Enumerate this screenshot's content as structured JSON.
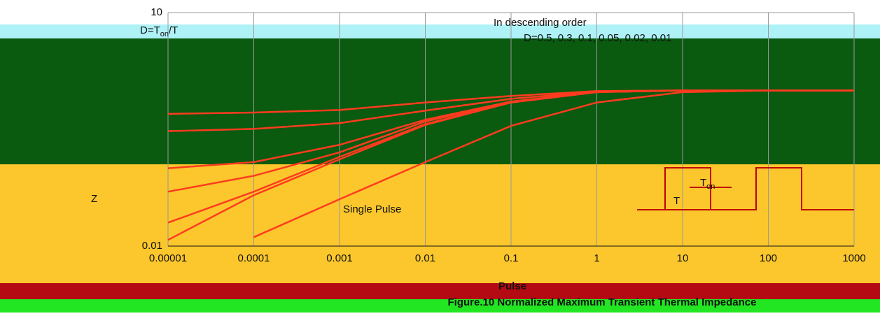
{
  "chart_data": {
    "type": "line",
    "title": "Figure.10 Normalized Maximum Transient Thermal Impedance",
    "x_label": "Pulse",
    "y_label": "Z",
    "legend_title": "In descending order",
    "legend_text": "D=0.5, 0.3, 0.1, 0.05, 0.02, 0.01",
    "duty_formula": {
      "lead": "D=T",
      "sub": "on",
      "tail": "/T"
    },
    "annotation": "Single Pulse",
    "inset_period": "T",
    "inset_on": {
      "lead": "T",
      "sub": "on"
    },
    "x": [
      1e-05,
      0.0001,
      0.001,
      0.01,
      0.1,
      1,
      10,
      100,
      1000
    ],
    "series": [
      {
        "color": "#ff3b1f",
        "values": [
          0.5,
          0.52,
          0.56,
          0.7,
          0.85,
          0.98,
          1,
          1,
          1
        ]
      },
      {
        "color": "#ff3b1f",
        "values": [
          0.3,
          0.32,
          0.38,
          0.55,
          0.78,
          0.97,
          1,
          1,
          1
        ]
      },
      {
        "color": "#ff3b1f",
        "values": [
          0.1,
          0.12,
          0.2,
          0.42,
          0.72,
          0.96,
          1,
          1,
          1
        ]
      },
      {
        "color": "#ff3b1f",
        "values": [
          0.05,
          0.08,
          0.16,
          0.4,
          0.71,
          0.96,
          1,
          1,
          1
        ]
      },
      {
        "color": "#ff3b1f",
        "values": [
          0.02,
          0.05,
          0.14,
          0.37,
          0.7,
          0.95,
          1,
          1,
          1
        ]
      },
      {
        "color": "#ff3b1f",
        "values": [
          0.012,
          0.045,
          0.13,
          0.36,
          0.7,
          0.95,
          1,
          1,
          1
        ]
      },
      {
        "name": "Single Pulse",
        "color": "#ff3b1f",
        "values": [
          null,
          0.013,
          0.04,
          0.12,
          0.35,
          0.7,
          0.95,
          1,
          1
        ]
      }
    ],
    "xlim": [
      1e-05,
      1000
    ],
    "ylim": [
      0.01,
      10
    ],
    "xticks": [
      1e-05,
      0.0001,
      0.001,
      0.01,
      0.1,
      1,
      10,
      100,
      1000
    ],
    "yticks": [
      0.01,
      10
    ],
    "xscale": "log",
    "yscale": "log",
    "grid": true
  }
}
